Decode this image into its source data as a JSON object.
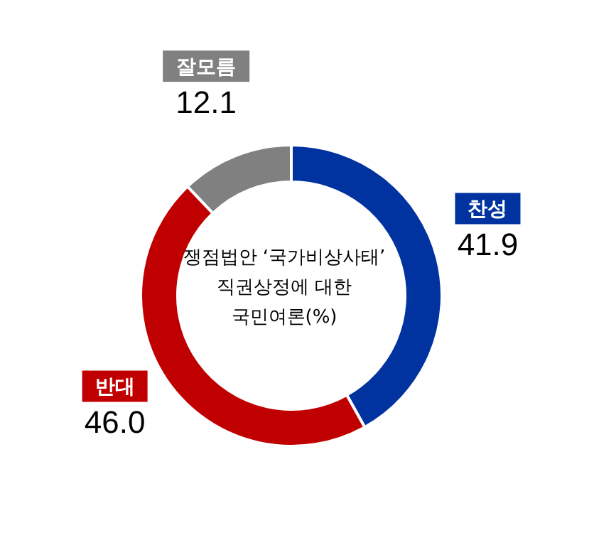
{
  "chart_data": {
    "type": "donut",
    "title": "쟁점법안 ‘국가비상사태’\n직권상정에 대한\n국민여론(%)",
    "categories": [
      "찬성",
      "반대",
      "잘모름"
    ],
    "values": [
      41.9,
      46.0,
      12.1
    ],
    "value_labels": [
      "41.9",
      "46.0",
      "12.1"
    ],
    "colors": [
      "#0033a0",
      "#c00000",
      "#808080"
    ]
  }
}
